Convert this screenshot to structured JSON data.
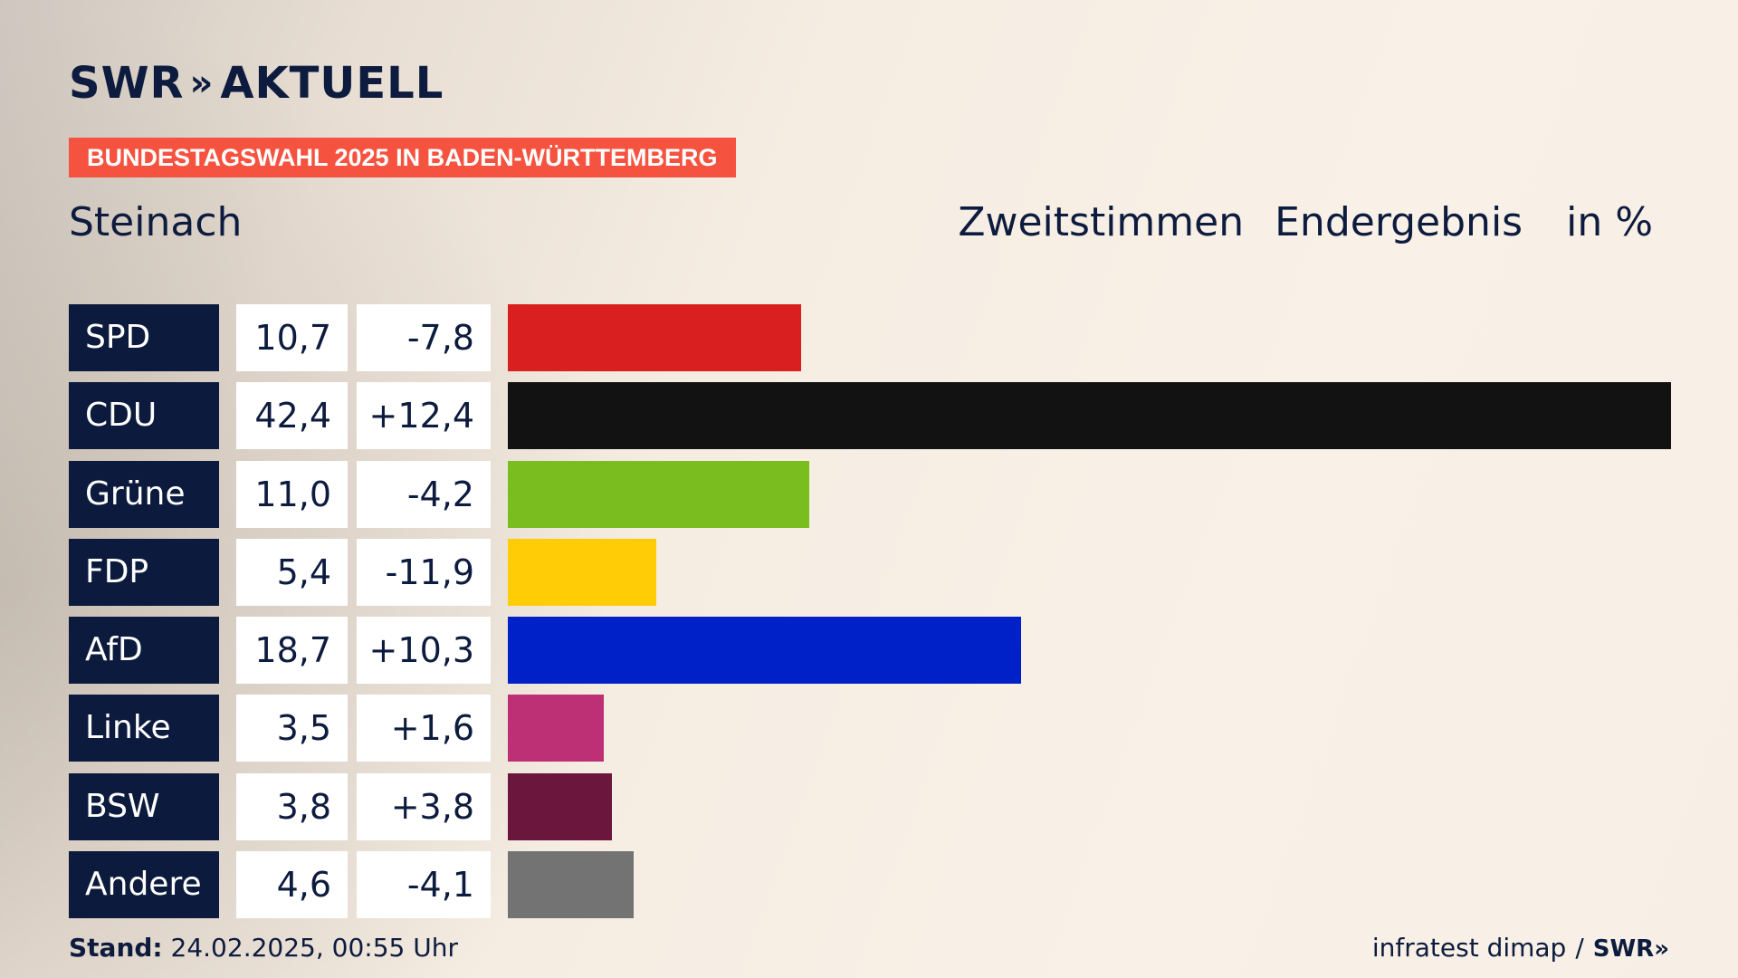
{
  "brand": {
    "logo_left": "SWR",
    "logo_chev": "»",
    "logo_right": "AKTUELL",
    "footer_logo": "SWR»"
  },
  "banner": "BUNDESTAGSWAHL 2025 IN BADEN-WÜRTTEMBERG",
  "place": "Steinach",
  "header": {
    "vote_type": "Zweitstimmen",
    "status": "Endergebnis",
    "unit": "in %"
  },
  "footer": {
    "stand_label": "Stand:",
    "stand_value": "24.02.2025, 00:55 Uhr",
    "source": "infratest dimap",
    "sep": "/"
  },
  "colors": {
    "navy": "#0c1b3d",
    "banner": "#f5533f"
  },
  "chart_data": {
    "type": "bar",
    "orientation": "horizontal",
    "categories": [
      "SPD",
      "CDU",
      "Grüne",
      "FDP",
      "AfD",
      "Linke",
      "BSW",
      "Andere"
    ],
    "values": [
      10.7,
      42.4,
      11.0,
      5.4,
      18.7,
      3.5,
      3.8,
      4.6
    ],
    "value_labels": [
      "10,7",
      "42,4",
      "11,0",
      "5,4",
      "18,7",
      "3,5",
      "3,8",
      "4,6"
    ],
    "diff_labels": [
      "-7,8",
      "+12,4",
      "-4,2",
      "-11,9",
      "+10,3",
      "+1,6",
      "+3,8",
      "-4,1"
    ],
    "colors": [
      "#d91f1f",
      "#121212",
      "#79bd1f",
      "#ffcc05",
      "#0021c8",
      "#bd3075",
      "#6b163d",
      "#737373"
    ],
    "ylim": [
      0,
      42.4
    ]
  }
}
